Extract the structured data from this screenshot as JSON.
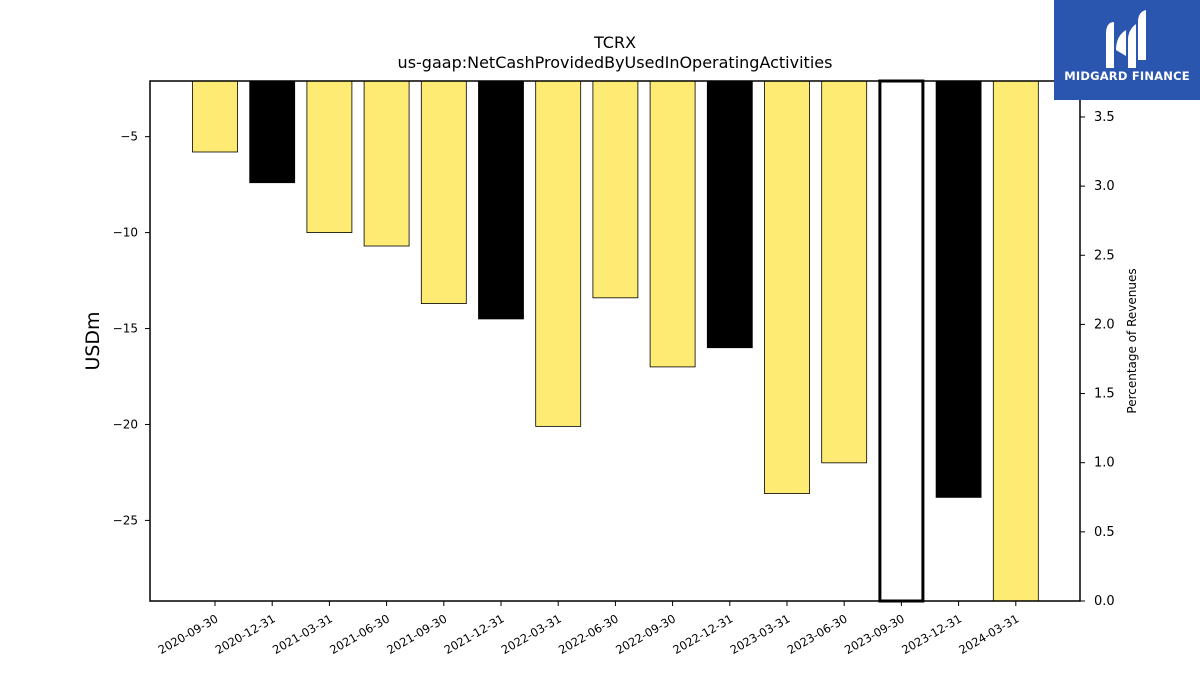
{
  "brand": {
    "name": "MIDGARD FINANCE",
    "logo_icon": "midgard-m-logo-icon",
    "background": "#2a56b0"
  },
  "chart_data": {
    "type": "bar",
    "title": "TCRX",
    "subtitle": "us-gaap:NetCashProvidedByUsedInOperatingActivities",
    "ylabel": "USDm",
    "y2label": "Percentage of Revenues",
    "ylim": [
      -29.2,
      -2.1
    ],
    "y2lim": [
      0.0,
      3.76
    ],
    "yticks": [
      -5,
      -10,
      -15,
      -20,
      -25
    ],
    "y2ticks": [
      "0.0",
      "0.5",
      "1.0",
      "1.5",
      "2.0",
      "2.5",
      "3.0",
      "3.5"
    ],
    "categories": [
      "2020-09-30",
      "2020-12-31",
      "2021-03-31",
      "2021-06-30",
      "2021-09-30",
      "2021-12-31",
      "2022-03-31",
      "2022-06-30",
      "2022-09-30",
      "2022-12-31",
      "2023-03-31",
      "2023-06-30",
      "2023-09-30",
      "2023-12-31",
      "2024-03-31"
    ],
    "values": [
      -5.8,
      -7.4,
      -10.0,
      -10.7,
      -13.7,
      -14.5,
      -20.1,
      -13.4,
      -17.0,
      -16.0,
      -23.6,
      -22.0,
      null,
      -23.8,
      -29.2
    ],
    "colors": [
      "#fdeb74",
      "#000000",
      "#fdeb74",
      "#fdeb74",
      "#fdeb74",
      "#000000",
      "#fdeb74",
      "#fdeb74",
      "#fdeb74",
      "#000000",
      "#fdeb74",
      "#fdeb74",
      "#ffffff",
      "#000000",
      "#fdeb74"
    ],
    "grid": false,
    "legend": "none"
  }
}
